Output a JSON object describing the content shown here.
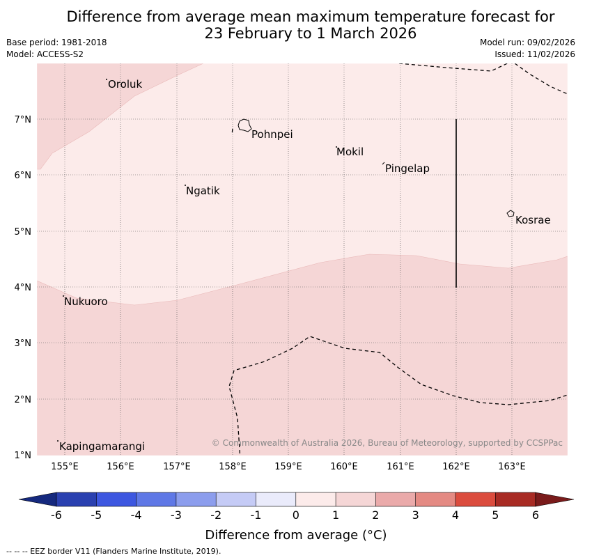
{
  "title": {
    "line1": "Difference from average mean maximum temperature forecast for",
    "line2": "23 February to 1 March 2026"
  },
  "info": {
    "base_period": "Base period: 1981-2018",
    "model": "Model: ACCESS-S2",
    "model_run": "Model run: 09/02/2026",
    "issued": "Issued: 11/02/2026"
  },
  "map": {
    "lat_ticks": [
      "7°N",
      "6°N",
      "5°N",
      "4°N",
      "3°N",
      "2°N",
      "1°N"
    ],
    "lon_ticks": [
      "155°E",
      "156°E",
      "157°E",
      "158°E",
      "159°E",
      "160°E",
      "161°E",
      "162°E",
      "163°E"
    ],
    "places": {
      "oroluk": "Oroluk",
      "pohnpei": "Pohnpei",
      "mokil": "Mokil",
      "pingelap": "Pingelap",
      "ngatik": "Ngatik",
      "kosrae": "Kosrae",
      "nukuoro": "Nukuoro",
      "kapingamarangi": "Kapingamarangi"
    },
    "copyright": "© Commonwealth of Australia 2026, Bureau of Meteorology, supported by CCSPPac"
  },
  "colorbar": {
    "ticks": [
      "-6",
      "-5",
      "-4",
      "-3",
      "-2",
      "-1",
      "0",
      "1",
      "2",
      "3",
      "4",
      "5",
      "6"
    ],
    "label": "Difference from average (°C)",
    "colors": {
      "below_min": "#15297e",
      "bin_m6_m5": "#2a40b0",
      "bin_m5_m4": "#3d57e0",
      "bin_m4_m3": "#5f78e6",
      "bin_m3_m2": "#8c9ded",
      "bin_m2_m1": "#c5cbf6",
      "bin_m1_0": "#eaebfb",
      "bin_0_1": "#fcebea",
      "bin_1_2": "#f5d6d6",
      "bin_2_3": "#eaaaaa",
      "bin_3_4": "#e48a83",
      "bin_4_5": "#db4c3e",
      "bin_5_6": "#a82b24",
      "above_max": "#7a1b1b"
    }
  },
  "fill_classes": {
    "light_band": "0 to 1",
    "darker_band": "1 to 2"
  },
  "eez_note": "--  --  -- EEZ border V11 (Flanders Marine Institute, 2019)."
}
